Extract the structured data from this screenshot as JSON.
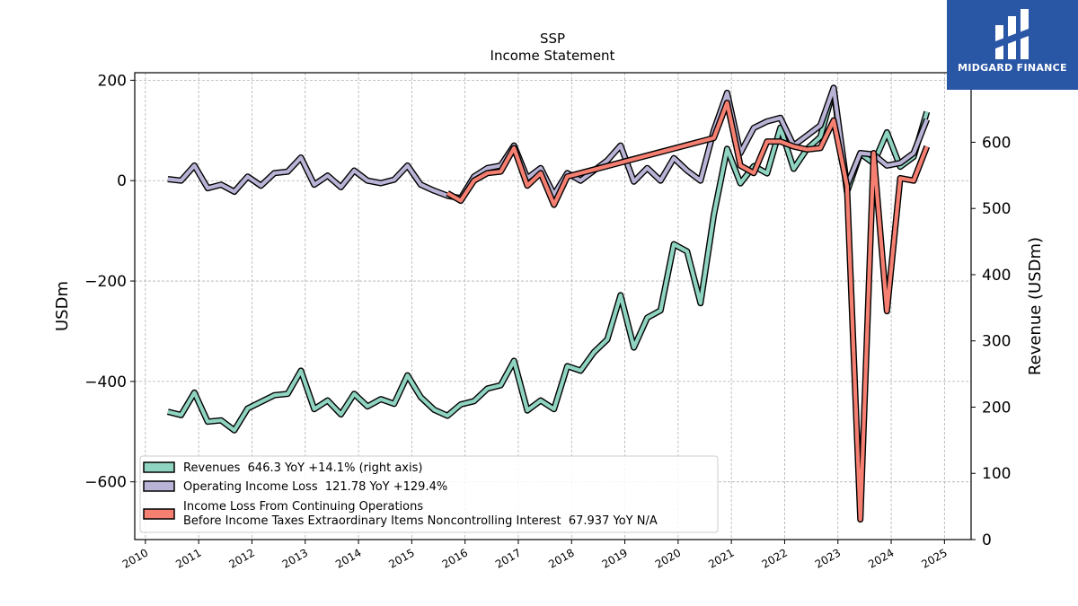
{
  "brand": {
    "name": "MIDGARD FINANCE",
    "background": "#2a56a6"
  },
  "chart_data": {
    "type": "line",
    "title": "SSP",
    "subtitle": "Income Statement",
    "ylabel_left": "USDm",
    "ylabel_right": "Revenue (USDm)",
    "left_ylim": [
      -715,
      215
    ],
    "right_ylim": [
      0,
      705
    ],
    "xlim": [
      2009.8,
      2025.5
    ],
    "left_ticks": [
      200,
      0,
      -200,
      -400,
      -600
    ],
    "left_tick_labels": [
      "200",
      "0",
      "−200",
      "−400",
      "−600"
    ],
    "right_ticks": [
      0,
      100,
      200,
      300,
      400,
      500,
      600
    ],
    "right_tick_labels": [
      "0",
      "100",
      "200",
      "300",
      "400",
      "500",
      "600"
    ],
    "x_ticks": [
      2010,
      2011,
      2012,
      2013,
      2014,
      2015,
      2016,
      2017,
      2018,
      2019,
      2020,
      2021,
      2022,
      2023,
      2024,
      2025
    ],
    "x_tick_labels": [
      "2010",
      "2011",
      "2012",
      "2013",
      "2014",
      "2015",
      "2016",
      "2017",
      "2018",
      "2019",
      "2020",
      "2021",
      "2022",
      "2023",
      "2024",
      "2025"
    ],
    "grid": true,
    "legend_position": "bottom-left",
    "series": [
      {
        "name": "Revenues  646.3 YoY +14.1% (right axis)",
        "axis": "right",
        "color": "#8fd3c1",
        "points": [
          [
            2010.42,
            193
          ],
          [
            2010.67,
            188
          ],
          [
            2010.92,
            222
          ],
          [
            2011.17,
            178
          ],
          [
            2011.42,
            180
          ],
          [
            2011.67,
            165
          ],
          [
            2011.92,
            198
          ],
          [
            2012.17,
            208
          ],
          [
            2012.42,
            218
          ],
          [
            2012.67,
            220
          ],
          [
            2012.92,
            255
          ],
          [
            2013.17,
            197
          ],
          [
            2013.42,
            210
          ],
          [
            2013.67,
            189
          ],
          [
            2013.92,
            220
          ],
          [
            2014.17,
            201
          ],
          [
            2014.42,
            212
          ],
          [
            2014.67,
            205
          ],
          [
            2014.92,
            248
          ],
          [
            2015.17,
            215
          ],
          [
            2015.42,
            196
          ],
          [
            2015.67,
            187
          ],
          [
            2015.92,
            204
          ],
          [
            2016.17,
            209
          ],
          [
            2016.42,
            228
          ],
          [
            2016.67,
            233
          ],
          [
            2016.92,
            270
          ],
          [
            2017.17,
            195
          ],
          [
            2017.42,
            210
          ],
          [
            2017.67,
            197
          ],
          [
            2017.92,
            262
          ],
          [
            2018.17,
            255
          ],
          [
            2018.42,
            283
          ],
          [
            2018.67,
            302
          ],
          [
            2018.92,
            369
          ],
          [
            2019.17,
            290
          ],
          [
            2019.42,
            335
          ],
          [
            2019.67,
            346
          ],
          [
            2019.92,
            446
          ],
          [
            2020.17,
            435
          ],
          [
            2020.42,
            357
          ],
          [
            2020.67,
            490
          ],
          [
            2020.92,
            590
          ],
          [
            2021.17,
            538
          ],
          [
            2021.42,
            564
          ],
          [
            2021.67,
            553
          ],
          [
            2021.92,
            622
          ],
          [
            2022.17,
            560
          ],
          [
            2022.42,
            590
          ],
          [
            2022.67,
            608
          ],
          [
            2022.92,
            680
          ],
          [
            2023.17,
            525
          ],
          [
            2023.42,
            583
          ],
          [
            2023.67,
            568
          ],
          [
            2023.92,
            615
          ],
          [
            2024.17,
            563
          ],
          [
            2024.42,
            578
          ],
          [
            2024.67,
            646
          ]
        ]
      },
      {
        "name": "Operating Income Loss  121.78 YoY +129.4%",
        "axis": "left",
        "color": "#b9b3d6",
        "points": [
          [
            2010.42,
            3
          ],
          [
            2010.67,
            0
          ],
          [
            2010.92,
            30
          ],
          [
            2011.17,
            -15
          ],
          [
            2011.42,
            -8
          ],
          [
            2011.67,
            -22
          ],
          [
            2011.92,
            8
          ],
          [
            2012.17,
            -10
          ],
          [
            2012.42,
            15
          ],
          [
            2012.67,
            18
          ],
          [
            2012.92,
            46
          ],
          [
            2013.17,
            -8
          ],
          [
            2013.42,
            10
          ],
          [
            2013.67,
            -13
          ],
          [
            2013.92,
            20
          ],
          [
            2014.17,
            0
          ],
          [
            2014.42,
            -5
          ],
          [
            2014.67,
            2
          ],
          [
            2014.92,
            30
          ],
          [
            2015.17,
            -8
          ],
          [
            2015.42,
            -20
          ],
          [
            2015.67,
            -30
          ],
          [
            2015.92,
            -35
          ],
          [
            2016.17,
            8
          ],
          [
            2016.42,
            25
          ],
          [
            2016.67,
            30
          ],
          [
            2016.92,
            70
          ],
          [
            2017.17,
            5
          ],
          [
            2017.42,
            25
          ],
          [
            2017.67,
            -28
          ],
          [
            2017.92,
            15
          ],
          [
            2018.17,
            0
          ],
          [
            2018.42,
            20
          ],
          [
            2018.67,
            40
          ],
          [
            2018.92,
            70
          ],
          [
            2019.17,
            -2
          ],
          [
            2019.42,
            25
          ],
          [
            2019.67,
            0
          ],
          [
            2019.92,
            45
          ],
          [
            2020.17,
            20
          ],
          [
            2020.42,
            0
          ],
          [
            2020.67,
            100
          ],
          [
            2020.92,
            175
          ],
          [
            2021.17,
            55
          ],
          [
            2021.42,
            105
          ],
          [
            2021.67,
            118
          ],
          [
            2021.92,
            125
          ],
          [
            2022.17,
            70
          ],
          [
            2022.42,
            90
          ],
          [
            2022.67,
            110
          ],
          [
            2022.92,
            185
          ],
          [
            2023.17,
            -10
          ],
          [
            2023.42,
            55
          ],
          [
            2023.67,
            52
          ],
          [
            2023.92,
            30
          ],
          [
            2024.17,
            35
          ],
          [
            2024.42,
            55
          ],
          [
            2024.67,
            122
          ]
        ]
      },
      {
        "name_lines": [
          "Income Loss From Continuing Operations",
          "Before Income Taxes Extraordinary Items Noncontrolling Interest  67.937 YoY N/A"
        ],
        "axis": "left",
        "color": "#f57f71",
        "points": [
          [
            2015.67,
            -25
          ],
          [
            2015.92,
            -40
          ],
          [
            2016.17,
            0
          ],
          [
            2016.42,
            15
          ],
          [
            2016.67,
            18
          ],
          [
            2016.92,
            65
          ],
          [
            2017.17,
            -10
          ],
          [
            2017.42,
            15
          ],
          [
            2017.67,
            -48
          ],
          [
            2017.92,
            8
          ],
          [
            2020.67,
            85
          ],
          [
            2020.92,
            155
          ],
          [
            2021.17,
            30
          ],
          [
            2021.42,
            15
          ],
          [
            2021.67,
            78
          ],
          [
            2021.92,
            78
          ],
          [
            2022.17,
            68
          ],
          [
            2022.42,
            62
          ],
          [
            2022.67,
            65
          ],
          [
            2022.92,
            120
          ],
          [
            2023.17,
            -10
          ],
          [
            2023.42,
            -675
          ],
          [
            2023.67,
            55
          ],
          [
            2023.92,
            -260
          ],
          [
            2024.17,
            5
          ],
          [
            2024.42,
            0
          ],
          [
            2024.67,
            68
          ]
        ]
      }
    ]
  }
}
